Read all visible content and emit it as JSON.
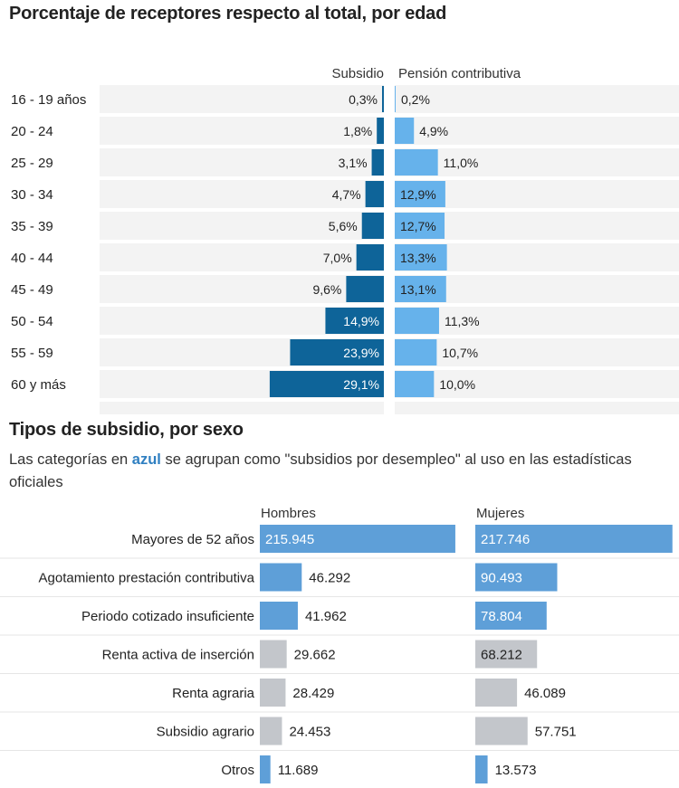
{
  "colors": {
    "dark_blue": "#0e6499",
    "light_blue": "#66b2eb",
    "mid_blue": "#5e9fd8",
    "gray_bar": "#c3c6cb",
    "row_bg": "#f3f3f3"
  },
  "subtitle": {
    "before": "Las categorías en ",
    "highlight": "azul",
    "after": " se agrupan como \"subsidios por desempleo\" al uso en las estadísticas oficiales"
  },
  "chart_data": [
    {
      "type": "bar",
      "title": "Porcentaje de receptores respecto al total, por edad",
      "categories": [
        "16 - 19 años",
        "20 - 24",
        "25 - 29",
        "30 - 34",
        "35 - 39",
        "40 - 44",
        "45 - 49",
        "50 - 54",
        "55 - 59",
        "60 y más"
      ],
      "series": [
        {
          "name": "Subsidio",
          "values": [
            0.3,
            1.8,
            3.1,
            4.7,
            5.6,
            7.0,
            9.6,
            14.9,
            23.9,
            29.1
          ],
          "labels": [
            "0,3%",
            "1,8%",
            "3,1%",
            "4,7%",
            "5,6%",
            "7,0%",
            "9,6%",
            "14,9%",
            "23,9%",
            "29,1%"
          ]
        },
        {
          "name": "Pensión contributiva",
          "values": [
            0.2,
            4.9,
            11.0,
            12.9,
            12.7,
            13.3,
            13.1,
            11.3,
            10.7,
            10.0
          ],
          "labels": [
            "0,2%",
            "4,9%",
            "11,0%",
            "12,9%",
            "12,7%",
            "13,3%",
            "13,1%",
            "11,3%",
            "10,7%",
            "10,0%"
          ]
        }
      ],
      "xlim": [
        0,
        30
      ]
    },
    {
      "type": "bar",
      "title": "Tipos de subsidio, por sexo",
      "categories": [
        "Mayores de 52 años",
        "Agotamiento prestación contributiva",
        "Periodo cotizado insuficiente",
        "Renta activa de inserción",
        "Renta agraria",
        "Subsidio agrario",
        "Otros"
      ],
      "highlighted_blue": [
        true,
        true,
        true,
        false,
        false,
        false,
        true
      ],
      "series": [
        {
          "name": "Hombres",
          "values": [
            215945,
            46292,
            41962,
            29662,
            28429,
            24453,
            11689
          ],
          "labels": [
            "215.945",
            "46.292",
            "41.962",
            "29.662",
            "28.429",
            "24.453",
            "11.689"
          ]
        },
        {
          "name": "Mujeres",
          "values": [
            217746,
            90493,
            78804,
            68212,
            46089,
            57751,
            13573
          ],
          "labels": [
            "217.746",
            "90.493",
            "78.804",
            "68.212",
            "46.089",
            "57.751",
            "13.573"
          ]
        }
      ],
      "xlim": [
        0,
        220000
      ]
    }
  ]
}
